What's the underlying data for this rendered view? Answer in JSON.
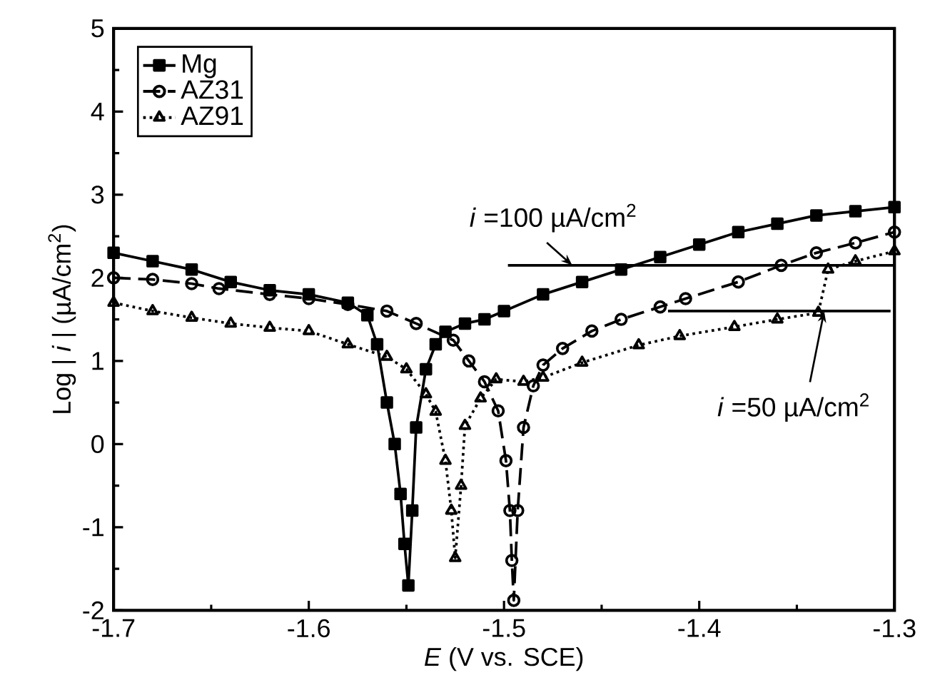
{
  "chart_data": {
    "type": "line",
    "xlabel": "*E*  (V vs. SCE)",
    "ylabel": "Log | *i* | (µA/cm$^{2}$)",
    "xlim": [
      -1.7,
      -1.3
    ],
    "xticks": [
      -1.7,
      -1.6,
      -1.5,
      -1.4,
      -1.3
    ],
    "ylim": [
      -2,
      5
    ],
    "yticks": [
      -2,
      -1,
      0,
      1,
      2,
      3,
      4,
      5
    ],
    "legend": "top left",
    "series": [
      {
        "name": "Mg",
        "color": "#000000",
        "marker": "square",
        "line_style": "solid",
        "x": [
          -1.7,
          -1.68,
          -1.66,
          -1.64,
          -1.62,
          -1.6,
          -1.58,
          -1.57,
          -1.565,
          -1.56,
          -1.556,
          -1.553,
          -1.551,
          -1.549,
          -1.547,
          -1.545,
          -1.54,
          -1.535,
          -1.53,
          -1.52,
          -1.51,
          -1.5,
          -1.48,
          -1.46,
          -1.44,
          -1.42,
          -1.4,
          -1.38,
          -1.36,
          -1.34,
          -1.32,
          -1.3
        ],
        "values": [
          2.3,
          2.2,
          2.1,
          1.95,
          1.85,
          1.8,
          1.7,
          1.55,
          1.2,
          0.5,
          0.0,
          -0.6,
          -1.2,
          -1.7,
          -0.8,
          0.2,
          0.9,
          1.2,
          1.35,
          1.45,
          1.5,
          1.6,
          1.8,
          1.95,
          2.1,
          2.25,
          2.4,
          2.55,
          2.65,
          2.75,
          2.8,
          2.85
        ]
      },
      {
        "name": "AZ31",
        "color": "#000000",
        "marker": "circle",
        "line_style": "dashed",
        "x": [
          -1.7,
          -1.68,
          -1.66,
          -1.646,
          -1.62,
          -1.6,
          -1.58,
          -1.56,
          -1.545,
          -1.526,
          -1.518,
          -1.51,
          -1.503,
          -1.499,
          -1.497,
          -1.496,
          -1.495,
          -1.493,
          -1.49,
          -1.485,
          -1.48,
          -1.47,
          -1.455,
          -1.44,
          -1.42,
          -1.407,
          -1.38,
          -1.358,
          -1.34,
          -1.32,
          -1.3
        ],
        "values": [
          2.0,
          1.98,
          1.93,
          1.87,
          1.8,
          1.75,
          1.68,
          1.6,
          1.45,
          1.25,
          1.0,
          0.75,
          0.4,
          -0.2,
          -0.8,
          -1.4,
          -1.88,
          -0.8,
          0.2,
          0.7,
          0.95,
          1.15,
          1.36,
          1.5,
          1.65,
          1.75,
          1.95,
          2.15,
          2.3,
          2.42,
          2.55
        ]
      },
      {
        "name": "AZ91",
        "color": "#000000",
        "marker": "triangle",
        "line_style": "dotted",
        "x": [
          -1.7,
          -1.68,
          -1.66,
          -1.64,
          -1.62,
          -1.6,
          -1.58,
          -1.56,
          -1.55,
          -1.54,
          -1.535,
          -1.53,
          -1.527,
          -1.525,
          -1.522,
          -1.52,
          -1.512,
          -1.504,
          -1.49,
          -1.48,
          -1.46,
          -1.431,
          -1.41,
          -1.382,
          -1.36,
          -1.339,
          -1.334,
          -1.32,
          -1.3
        ],
        "values": [
          1.7,
          1.6,
          1.52,
          1.45,
          1.4,
          1.36,
          1.2,
          1.05,
          0.9,
          0.6,
          0.39,
          -0.2,
          -0.8,
          -1.37,
          -0.5,
          0.22,
          0.55,
          0.78,
          0.75,
          0.8,
          0.98,
          1.19,
          1.3,
          1.41,
          1.5,
          1.58,
          2.1,
          2.2,
          2.32
        ]
      },
      {
        "type": "line",
        "color": "#000000",
        "marker": "none",
        "line_style": "solid",
        "x": [
          -1.498,
          -1.3
        ],
        "values": [
          2.15,
          2.15
        ]
      },
      {
        "type": "line",
        "color": "#000000",
        "marker": "none",
        "line_style": "solid",
        "x": [
          -1.416,
          -1.302
        ],
        "values": [
          1.6,
          1.6
        ]
      }
    ],
    "annotations": [
      {
        "text": "*i* =100 µA/cm$^{2}$",
        "x": -1.465,
        "y": 2.15
      },
      {
        "text": "*i* =50 µA/cm$^{2}$",
        "x": -1.336,
        "y": 1.6
      }
    ]
  }
}
